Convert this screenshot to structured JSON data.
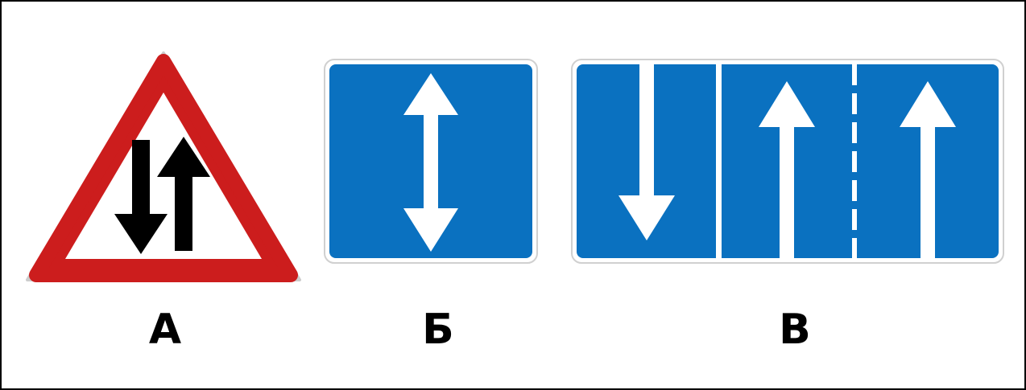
{
  "colors": {
    "warning_red": "#cc1d1d",
    "sign_blue": "#0a71c0",
    "arrow_black": "#000000",
    "arrow_white": "#ffffff"
  },
  "signs": [
    {
      "label": "А",
      "icon": "two-way-traffic-warning-icon"
    },
    {
      "label": "Б",
      "icon": "two-way-lane-icon"
    },
    {
      "label": "В",
      "icon": "lane-directions-icon"
    }
  ]
}
